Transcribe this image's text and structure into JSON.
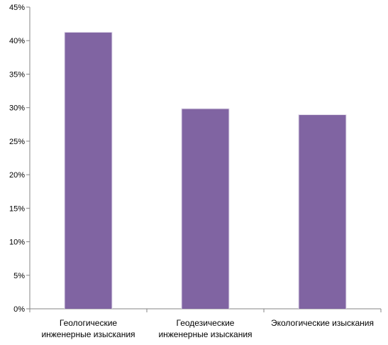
{
  "chart_data": {
    "type": "bar",
    "title": "",
    "xlabel": "",
    "ylabel": "",
    "categories": [
      [
        "Геологические",
        "инженерные изыскания"
      ],
      [
        "Геодезические",
        "инженерные изыскания"
      ],
      [
        "Экологические изыскания"
      ]
    ],
    "values": [
      41.2,
      29.8,
      28.9
    ],
    "ylim": [
      0,
      45
    ],
    "ytick_values": [
      0,
      5,
      10,
      15,
      20,
      25,
      30,
      35,
      40,
      45
    ],
    "ytick_labels": [
      "0%",
      "5%",
      "10%",
      "15%",
      "20%",
      "25%",
      "30%",
      "35%",
      "40%",
      "45%"
    ],
    "grid": false,
    "legend": "none",
    "bar_color": "#8064A2"
  }
}
